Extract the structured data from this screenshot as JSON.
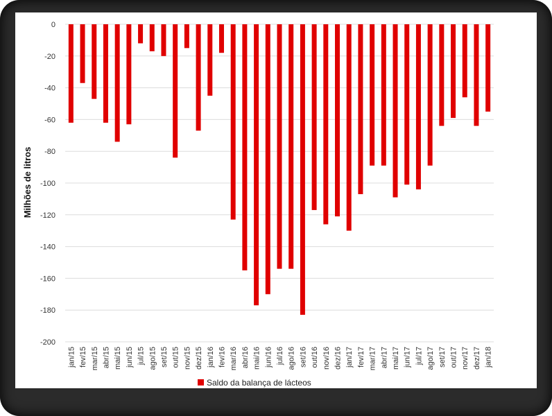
{
  "chart_data": {
    "type": "bar",
    "title": "",
    "xlabel": "",
    "ylabel": "Milhões de litros",
    "ylim": [
      -200,
      0
    ],
    "yticks": [
      0,
      -20,
      -40,
      -60,
      -80,
      -100,
      -120,
      -140,
      -160,
      -180,
      -200
    ],
    "grid": true,
    "legend_position": "bottom",
    "bar_color": "#e00000",
    "categories": [
      "jan/15",
      "fev/15",
      "mar/15",
      "abr/15",
      "mai/15",
      "jun/15",
      "jul/15",
      "ago/15",
      "set/15",
      "out/15",
      "nov/15",
      "dez/15",
      "jan/16",
      "fev/16",
      "mar/16",
      "abr/16",
      "mai/16",
      "jun/16",
      "jul/16",
      "ago/16",
      "set/16",
      "out/16",
      "nov/16",
      "dez/16",
      "jan/17",
      "fev/17",
      "mar/17",
      "abr/17",
      "mai/17",
      "jun/17",
      "jul/17",
      "ago/17",
      "set/17",
      "out/17",
      "nov/17",
      "dez/17",
      "jan/18"
    ],
    "series": [
      {
        "name": "Saldo da balança de lácteos",
        "values": [
          -62,
          -37,
          -47,
          -62,
          -74,
          -63,
          -12,
          -17,
          -20,
          -84,
          -15,
          -67,
          -45,
          -18,
          -123,
          -155,
          -177,
          -170,
          -154,
          -154,
          -183,
          -117,
          -126,
          -121,
          -130,
          -107,
          -89,
          -89,
          -109,
          -101,
          -104,
          -89,
          -64,
          -59,
          -46,
          -64,
          -55
        ]
      }
    ]
  }
}
